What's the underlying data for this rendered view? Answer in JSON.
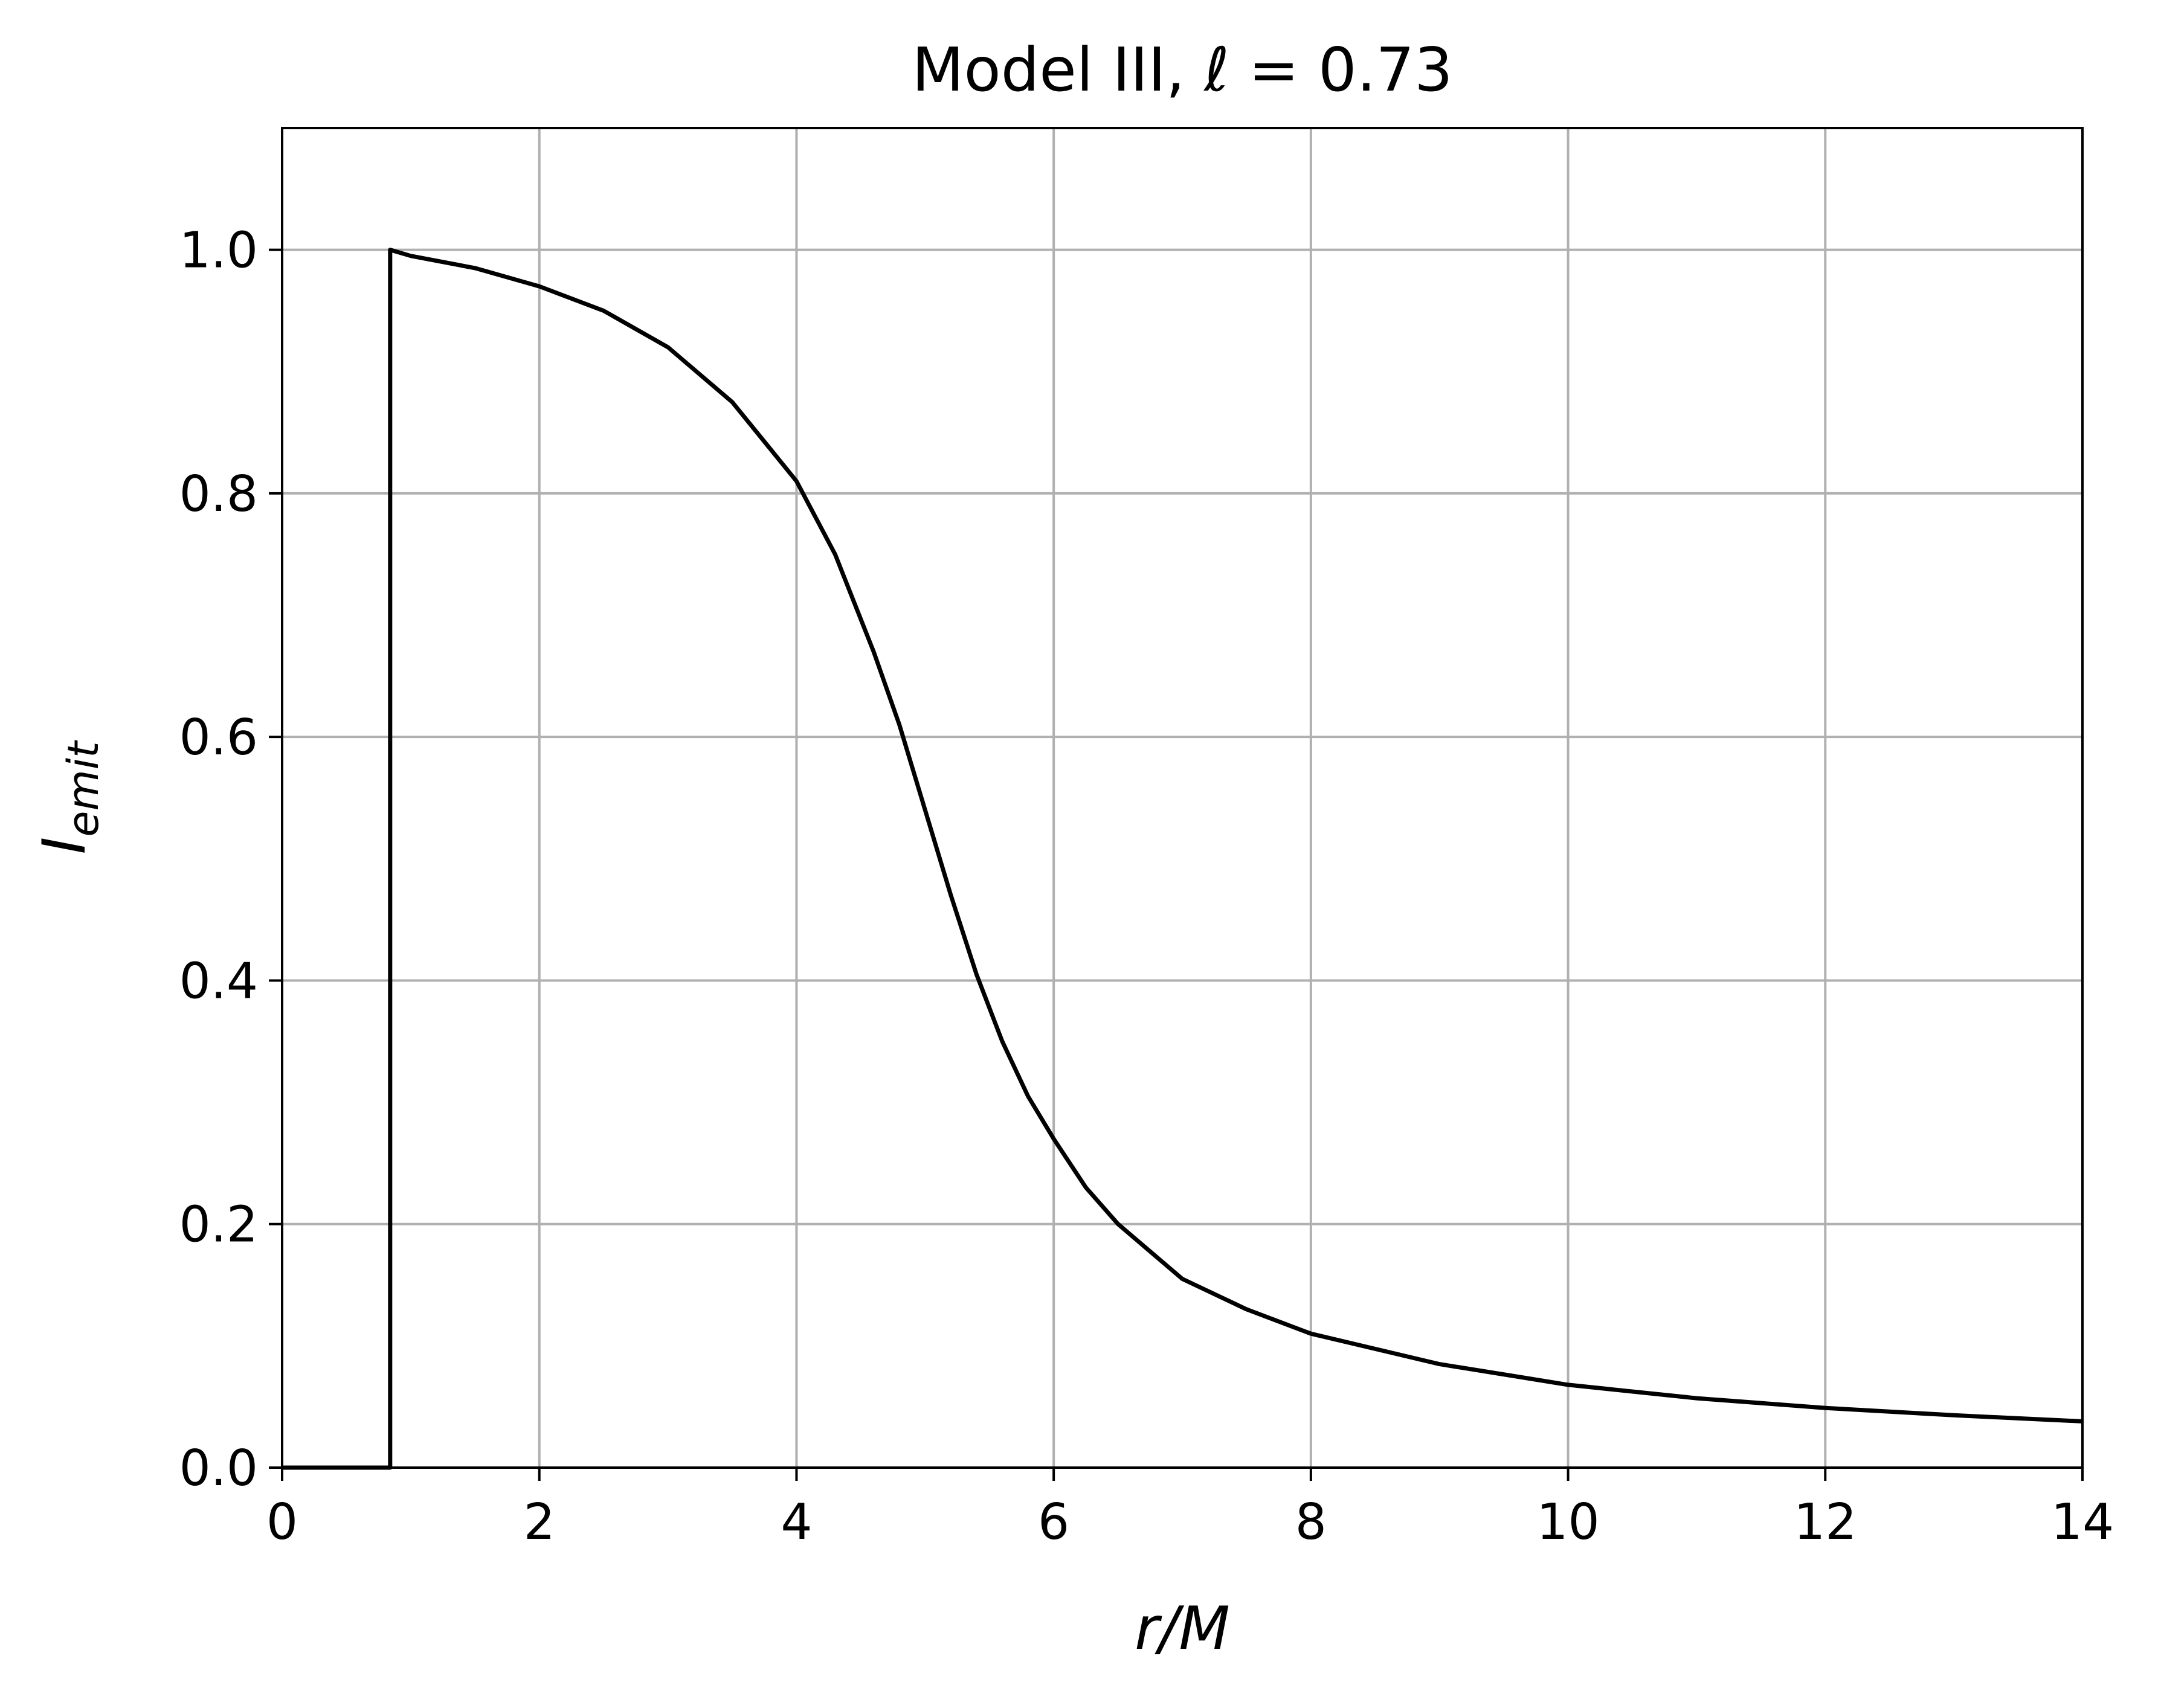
{
  "chart_data": {
    "type": "line",
    "title": {
      "prefix": "Model III, ",
      "symbol": "ℓ",
      "suffix": " = 0.73"
    },
    "xlabel": "r/M",
    "ylabel": {
      "base": "I",
      "sub": "emit"
    },
    "xlim": [
      0,
      14
    ],
    "ylim": [
      0,
      1.1
    ],
    "xticks": [
      0,
      2,
      4,
      6,
      8,
      10,
      12,
      14
    ],
    "xtick_labels": [
      "0",
      "2",
      "4",
      "6",
      "8",
      "10",
      "12",
      "14"
    ],
    "yticks": [
      0,
      0.2,
      0.4,
      0.6,
      0.8,
      1.0
    ],
    "ytick_labels": [
      "0.0",
      "0.2",
      "0.4",
      "0.6",
      "0.8",
      "1.0"
    ],
    "grid": true,
    "series": [
      {
        "color": "#000000",
        "x": [
          0,
          0.84,
          0.84,
          1,
          1.5,
          2,
          2.5,
          3,
          3.5,
          4,
          4.3,
          4.6,
          4.8,
          5,
          5.2,
          5.4,
          5.6,
          5.8,
          6,
          6.25,
          6.5,
          7,
          7.5,
          8,
          9,
          10,
          11,
          12,
          13,
          14
        ],
        "y": [
          0,
          0,
          1.0,
          0.995,
          0.985,
          0.97,
          0.95,
          0.92,
          0.875,
          0.81,
          0.75,
          0.67,
          0.61,
          0.54,
          0.47,
          0.405,
          0.35,
          0.305,
          0.27,
          0.23,
          0.2,
          0.155,
          0.13,
          0.11,
          0.085,
          0.068,
          0.057,
          0.049,
          0.043,
          0.038
        ]
      }
    ]
  }
}
